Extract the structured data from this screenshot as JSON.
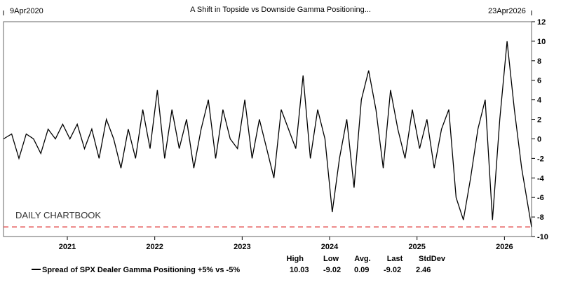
{
  "chart_data": {
    "type": "line",
    "title": "A Shift in Topside vs Downside Gamma Positioning...",
    "start_label": "9Apr2020",
    "end_label": "23Apr2026",
    "watermark": "DAILY CHARTBOOK",
    "ylim": [
      -10,
      12
    ],
    "yticks": [
      12,
      10,
      8,
      6,
      4,
      2,
      0,
      -2,
      -4,
      -6,
      -8,
      -10
    ],
    "xticks": [
      "2021",
      "2022",
      "2023",
      "2024",
      "2025",
      "2026"
    ],
    "grid": false,
    "reference_line": {
      "value": -9.02,
      "color": "#e03030",
      "style": "dashed"
    },
    "series": [
      {
        "name": "Spread of SPX Dealer Gamma Positioning +5% vs -5%",
        "color": "#000000",
        "x": [
          "2020-04",
          "2020-05",
          "2020-06",
          "2020-07",
          "2020-08",
          "2020-09",
          "2020-10",
          "2020-11",
          "2020-12",
          "2021-01",
          "2021-02",
          "2021-03",
          "2021-04",
          "2021-05",
          "2021-06",
          "2021-07",
          "2021-08",
          "2021-09",
          "2021-10",
          "2021-11",
          "2021-12",
          "2022-01",
          "2022-02",
          "2022-03",
          "2022-04",
          "2022-05",
          "2022-06",
          "2022-07",
          "2022-08",
          "2022-09",
          "2022-10",
          "2022-11",
          "2022-12",
          "2023-01",
          "2023-02",
          "2023-03",
          "2023-04",
          "2023-05",
          "2023-06",
          "2023-07",
          "2023-08",
          "2023-09",
          "2023-10",
          "2023-11",
          "2023-12",
          "2024-01",
          "2024-02",
          "2024-03",
          "2024-04",
          "2024-05",
          "2024-06",
          "2024-07",
          "2024-08",
          "2024-09",
          "2024-10",
          "2024-11",
          "2024-12",
          "2025-01",
          "2025-02",
          "2025-03",
          "2025-04",
          "2025-05",
          "2025-06",
          "2025-07",
          "2025-08",
          "2025-09",
          "2025-10",
          "2025-11",
          "2025-12",
          "2026-01",
          "2026-02",
          "2026-03",
          "2026-04"
        ],
        "values": [
          0,
          0.5,
          -2,
          0.5,
          0,
          -1.5,
          1,
          0,
          1.5,
          0,
          1.5,
          -1,
          1,
          -2,
          2,
          0,
          -3,
          1,
          -2,
          3,
          -1,
          5,
          -2,
          3,
          -1,
          2,
          -3,
          1,
          4,
          -2,
          3,
          0,
          -1,
          4,
          -2,
          2,
          -1,
          -4,
          3,
          1,
          -1,
          6.5,
          -2,
          3,
          0,
          -7.5,
          -2,
          2,
          -5,
          4,
          7,
          3,
          -3,
          5,
          1,
          -2,
          3,
          -1,
          2,
          -3,
          1,
          3,
          -6,
          -8.3,
          -4,
          1,
          4,
          -8.3,
          2,
          10,
          3,
          -3,
          -9.02
        ]
      }
    ]
  },
  "legend": {
    "headers": [
      "High",
      "Low",
      "Avg.",
      "Last",
      "StdDev"
    ],
    "label": "Spread of SPX Dealer Gamma Positioning +5% vs -5%",
    "values": [
      "10.03",
      "-9.02",
      "0.09",
      "-9.02",
      "2.46"
    ]
  }
}
